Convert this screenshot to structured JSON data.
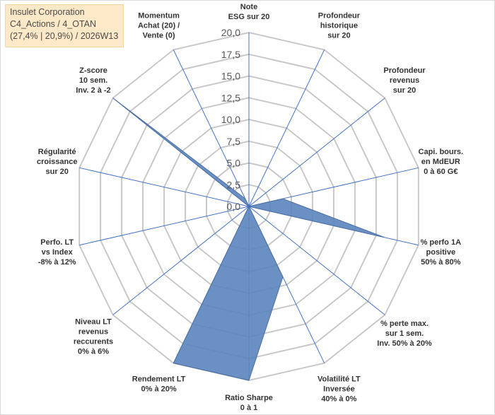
{
  "title_box": {
    "line1": "Insulet Corporation",
    "line2": "C4_Actions / 4_OTAN",
    "line3": "(27,4% | 20,9%) / 2026W13"
  },
  "colors": {
    "series_fill": "#5b84bd",
    "spoke": "#4472c4",
    "ring": "#c8c8c8",
    "title_bg": "#fde9c7"
  },
  "chart_data": {
    "type": "radar",
    "title": "Insulet Corporation",
    "rlim": [
      0,
      20
    ],
    "grid": true,
    "tick_labels": [
      "0,0",
      "2,5",
      "5,0",
      "7,5",
      "10,0",
      "12,5",
      "15,0",
      "17,5",
      "20,0"
    ],
    "categories": [
      [
        "Note",
        "ESG sur 20"
      ],
      [
        "Profondeur",
        "historique",
        "sur 20"
      ],
      [
        "Profondeur",
        "revenus",
        "sur 20"
      ],
      [
        "Capi. bours.",
        "en MdEUR",
        "0 à 60 G€"
      ],
      [
        "% perfo 1A",
        "positive",
        "50% à 80%"
      ],
      [
        "% perte max.",
        "sur 1 sem.",
        "Inv. 50% à 20%"
      ],
      [
        "Volatilité LT",
        "Inversée",
        "40% à 0%"
      ],
      [
        "Ratio Sharpe",
        "0 à 1"
      ],
      [
        "Rendement LT",
        "0% à 20%"
      ],
      [
        "Niveau LT",
        "revenus",
        "reccurents",
        "0% à 6%"
      ],
      [
        "Perfo. LT",
        "vs Index",
        "-8% à 12%"
      ],
      [
        "Régularité",
        "croissance",
        "sur 20"
      ],
      [
        "Z-score",
        "10 sem.",
        "Inv. 2 à -2"
      ],
      [
        "Momentum",
        "Achat (20) /",
        "Vente (0)"
      ]
    ],
    "series": [
      {
        "name": "Insulet Corporation",
        "values": [
          0,
          0,
          0,
          4,
          16,
          0,
          9,
          20,
          20,
          0,
          0,
          0,
          20,
          1
        ]
      }
    ]
  }
}
